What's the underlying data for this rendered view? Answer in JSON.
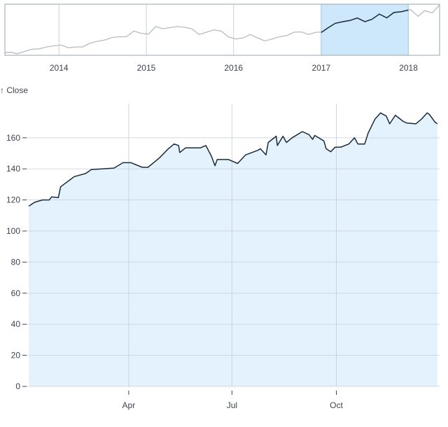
{
  "chart_data": [
    {
      "role": "context",
      "type": "line",
      "xlabel": "",
      "ylabel": "",
      "x_ticks": [
        "2014",
        "2015",
        "2016",
        "2017",
        "2018"
      ],
      "xlim": [
        "2013-05-20",
        "2018-05-11"
      ],
      "ylim": [
        55,
        190
      ],
      "grid": "vertical",
      "brush": {
        "start": "2017-01-01",
        "end": "2017-12-31"
      },
      "colors": {
        "line": "#b7bcc3",
        "line_selected": "#1b2a3a",
        "brush": "#cde8fb",
        "grid": "#c9d1d9",
        "frame": "#9aa3ad"
      },
      "points": [
        [
          "2013-05-20",
          62
        ],
        [
          "2013-06-15",
          63
        ],
        [
          "2013-07-10",
          59
        ],
        [
          "2013-08-10",
          65
        ],
        [
          "2013-09-10",
          71
        ],
        [
          "2013-10-10",
          72
        ],
        [
          "2013-11-10",
          77
        ],
        [
          "2013-12-10",
          80
        ],
        [
          "2014-01-10",
          82
        ],
        [
          "2014-02-10",
          75
        ],
        [
          "2014-03-10",
          77
        ],
        [
          "2014-04-10",
          77
        ],
        [
          "2014-05-10",
          87
        ],
        [
          "2014-06-10",
          92
        ],
        [
          "2014-07-10",
          95
        ],
        [
          "2014-08-10",
          102
        ],
        [
          "2014-09-10",
          104
        ],
        [
          "2014-10-10",
          104
        ],
        [
          "2014-11-10",
          119
        ],
        [
          "2014-12-10",
          113
        ],
        [
          "2015-01-10",
          111
        ],
        [
          "2015-02-10",
          131
        ],
        [
          "2015-03-10",
          125
        ],
        [
          "2015-04-10",
          128
        ],
        [
          "2015-05-10",
          131
        ],
        [
          "2015-06-10",
          129
        ],
        [
          "2015-07-10",
          125
        ],
        [
          "2015-08-10",
          110
        ],
        [
          "2015-09-10",
          116
        ],
        [
          "2015-10-10",
          122
        ],
        [
          "2015-11-10",
          119
        ],
        [
          "2015-12-10",
          104
        ],
        [
          "2016-01-10",
          98
        ],
        [
          "2016-02-10",
          101
        ],
        [
          "2016-03-10",
          110
        ],
        [
          "2016-04-10",
          101
        ],
        [
          "2016-05-10",
          93
        ],
        [
          "2016-06-10",
          98
        ],
        [
          "2016-07-10",
          104
        ],
        [
          "2016-08-10",
          107
        ],
        [
          "2016-09-10",
          116
        ],
        [
          "2016-10-10",
          117
        ],
        [
          "2016-11-10",
          110
        ],
        [
          "2016-12-10",
          116
        ],
        [
          "2017-01-03",
          116
        ],
        [
          "2017-02-01",
          128.5
        ],
        [
          "2017-03-01",
          139.5
        ],
        [
          "2017-04-03",
          144
        ],
        [
          "2017-05-01",
          147
        ],
        [
          "2017-06-01",
          153.5
        ],
        [
          "2017-07-03",
          144
        ],
        [
          "2017-08-01",
          150
        ],
        [
          "2017-09-01",
          164
        ],
        [
          "2017-10-02",
          154
        ],
        [
          "2017-11-01",
          168
        ],
        [
          "2017-12-01",
          170
        ],
        [
          "2018-01-10",
          176
        ],
        [
          "2018-02-10",
          158
        ],
        [
          "2018-03-10",
          173
        ],
        [
          "2018-04-10",
          167
        ],
        [
          "2018-05-11",
          188
        ]
      ]
    },
    {
      "role": "focus",
      "type": "area",
      "title": "",
      "xlabel": "",
      "ylabel": "↑ Close",
      "x_ticks": [
        "Apr",
        "Jul",
        "Oct"
      ],
      "y_ticks": [
        0,
        20,
        40,
        60,
        80,
        100,
        120,
        140,
        160
      ],
      "xlim": [
        "2017-01-01",
        "2017-12-31"
      ],
      "ylim": [
        0,
        182
      ],
      "grid": "both",
      "colors": {
        "line": "#1b2a3a",
        "area": "#e3f2fd",
        "grid": "#c9d1d9"
      },
      "points": [
        [
          "2017-01-03",
          116
        ],
        [
          "2017-01-08",
          118.5
        ],
        [
          "2017-01-15",
          120
        ],
        [
          "2017-01-21",
          120
        ],
        [
          "2017-01-23",
          122
        ],
        [
          "2017-01-29",
          121.5
        ],
        [
          "2017-01-31",
          128.5
        ],
        [
          "2017-02-12",
          135
        ],
        [
          "2017-02-22",
          137
        ],
        [
          "2017-02-27",
          139.5
        ],
        [
          "2017-03-19",
          140.5
        ],
        [
          "2017-03-27",
          144
        ],
        [
          "2017-04-03",
          144
        ],
        [
          "2017-04-13",
          141
        ],
        [
          "2017-04-18",
          141
        ],
        [
          "2017-04-28",
          147
        ],
        [
          "2017-05-06",
          153
        ],
        [
          "2017-05-11",
          156
        ],
        [
          "2017-05-15",
          155
        ],
        [
          "2017-05-16",
          150.5
        ],
        [
          "2017-05-21",
          153.5
        ],
        [
          "2017-06-03",
          153.5
        ],
        [
          "2017-06-08",
          155
        ],
        [
          "2017-06-13",
          148
        ],
        [
          "2017-06-16",
          142
        ],
        [
          "2017-06-18",
          146
        ],
        [
          "2017-06-28",
          146
        ],
        [
          "2017-07-06",
          143.5
        ],
        [
          "2017-07-13",
          149
        ],
        [
          "2017-07-24",
          152
        ],
        [
          "2017-07-26",
          153
        ],
        [
          "2017-07-31",
          149
        ],
        [
          "2017-08-02",
          157
        ],
        [
          "2017-08-09",
          161
        ],
        [
          "2017-08-10",
          155
        ],
        [
          "2017-08-15",
          161
        ],
        [
          "2017-08-18",
          157
        ],
        [
          "2017-08-23",
          160
        ],
        [
          "2017-09-01",
          164
        ],
        [
          "2017-09-07",
          162
        ],
        [
          "2017-09-10",
          159
        ],
        [
          "2017-09-12",
          161.5
        ],
        [
          "2017-09-20",
          158
        ],
        [
          "2017-09-22",
          153
        ],
        [
          "2017-09-26",
          151
        ],
        [
          "2017-09-30",
          154
        ],
        [
          "2017-10-05",
          154
        ],
        [
          "2017-10-12",
          156
        ],
        [
          "2017-10-17",
          160
        ],
        [
          "2017-10-20",
          156
        ],
        [
          "2017-10-26",
          156
        ],
        [
          "2017-10-29",
          163
        ],
        [
          "2017-11-02",
          169
        ],
        [
          "2017-11-04",
          172
        ],
        [
          "2017-11-09",
          176
        ],
        [
          "2017-11-14",
          174
        ],
        [
          "2017-11-17",
          169
        ],
        [
          "2017-11-22",
          174.5
        ],
        [
          "2017-11-29",
          170.5
        ],
        [
          "2017-12-02",
          169.5
        ],
        [
          "2017-12-10",
          169
        ],
        [
          "2017-12-15",
          172
        ],
        [
          "2017-12-20",
          176
        ],
        [
          "2017-12-22",
          175
        ],
        [
          "2017-12-27",
          170
        ],
        [
          "2017-12-29",
          169
        ]
      ]
    }
  ]
}
